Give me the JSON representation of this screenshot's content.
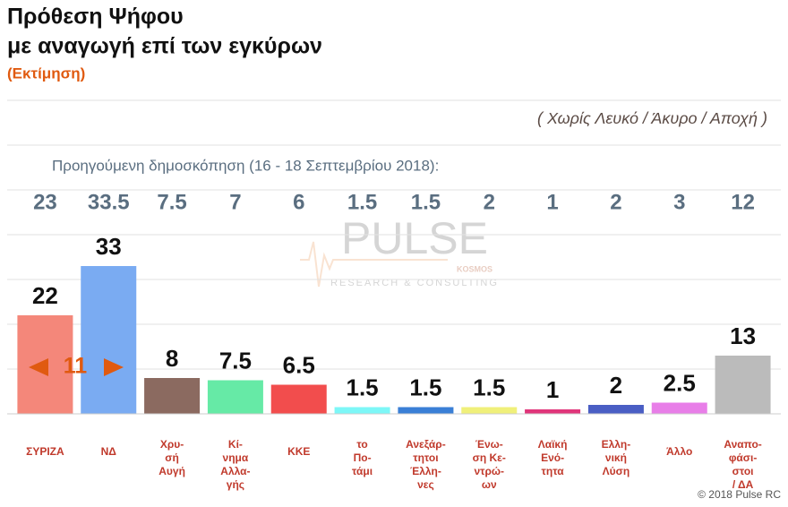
{
  "chart_data": {
    "type": "bar",
    "title": [
      "Πρόθεση Ψήφου",
      "με αναγωγή επί των εγκύρων"
    ],
    "subtitle": "(Εκτίμηση)",
    "note": "( Χωρίς Λευκό / Άκυρο / Αποχή )",
    "previous_label": "Προηγούμενη δημοσκόπηση (16 - 18 Σεπτεμβρίου 2018):",
    "previous_values": [
      23,
      33.5,
      7.5,
      7,
      6,
      1.5,
      1.5,
      2,
      1,
      2,
      3,
      12
    ],
    "categories": [
      [
        "ΣΥΡΙΖΑ"
      ],
      [
        "ΝΔ"
      ],
      [
        "Χρυ-",
        "σή",
        "Αυγή"
      ],
      [
        "Κί-",
        "νημα",
        "Αλλα-",
        "γής"
      ],
      [
        "ΚΚΕ"
      ],
      [
        "το",
        "Πο-",
        "τάμι"
      ],
      [
        "Ανεξάρ-",
        "τητοι",
        "Έλλη-",
        "νες"
      ],
      [
        "Ένω-",
        "ση Κε-",
        "ντρώ-",
        "ων"
      ],
      [
        "Λαϊκή",
        "Ενό-",
        "τητα"
      ],
      [
        "Ελλη-",
        "νική",
        "Λύση"
      ],
      [
        "Άλλο"
      ],
      [
        "Αναπο-",
        "φάσι-",
        "στοι",
        "/ ΔΑ"
      ]
    ],
    "values": [
      22,
      33,
      8,
      7.5,
      6.5,
      1.5,
      1.5,
      1.5,
      1,
      2,
      2.5,
      13
    ],
    "colors": [
      "#f4877a",
      "#7aabf2",
      "#8b6a60",
      "#66eaa6",
      "#f24d4d",
      "#7df7f7",
      "#3a7fd6",
      "#f0f07a",
      "#e0357a",
      "#4a5ec4",
      "#e87ee8",
      "#bbbbbb"
    ],
    "difference": 11,
    "ylim": [
      0,
      70
    ],
    "yticks": [
      0,
      10,
      20,
      30,
      40,
      50,
      60,
      70
    ],
    "grid": true,
    "watermark": [
      "PULSE",
      "KOSMOS",
      "RESEARCH & CONSULTING"
    ],
    "copyright": "© 2018 Pulse RC"
  }
}
